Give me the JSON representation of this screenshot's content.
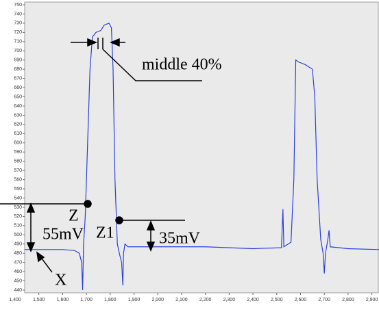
{
  "chart_data": {
    "type": "line",
    "x": [
      1440,
      1600,
      1650,
      1670,
      1680,
      1684,
      1688,
      1695,
      1705,
      1715,
      1725,
      1740,
      1760,
      1775,
      1795,
      1805,
      1812,
      1820,
      1830,
      1840,
      1848,
      1853,
      1856,
      1862,
      1875,
      2000,
      2200,
      2400,
      2520,
      2526,
      2530,
      2560,
      2572,
      2580,
      2590,
      2620,
      2650,
      2660,
      2670,
      2685,
      2695,
      2700,
      2705,
      2715,
      2720,
      2725,
      2800,
      2930
    ],
    "series": [
      {
        "color": "#2a3fe0",
        "values": [
          484,
          484,
          483,
          480,
          470,
          440,
          490,
          520,
          600,
          680,
          715,
          720,
          722,
          728,
          730,
          725,
          680,
          560,
          490,
          478,
          470,
          445,
          480,
          490,
          487,
          487,
          487,
          485,
          486,
          528,
          487,
          492,
          560,
          690,
          688,
          685,
          680,
          650,
          560,
          495,
          480,
          458,
          480,
          495,
          505,
          487,
          485,
          484
        ]
      }
    ],
    "xlim": [
      1400,
      2930
    ],
    "ylim": [
      440,
      750
    ],
    "xticks": [
      {
        "value": 1400,
        "label": "1,400"
      },
      {
        "value": 1500,
        "label": "1,500"
      },
      {
        "value": 1600,
        "label": "1,600"
      },
      {
        "value": 1700,
        "label": "1,700"
      },
      {
        "value": 1800,
        "label": "1,800"
      },
      {
        "value": 1900,
        "label": "1,900"
      },
      {
        "value": 2000,
        "label": "2,000"
      },
      {
        "value": 2100,
        "label": "2,100"
      },
      {
        "value": 2200,
        "label": "2,200"
      },
      {
        "value": 2300,
        "label": "2,300"
      },
      {
        "value": 2400,
        "label": "2,400"
      },
      {
        "value": 2500,
        "label": "2,500"
      },
      {
        "value": 2600,
        "label": "2,600"
      },
      {
        "value": 2700,
        "label": "2,700"
      },
      {
        "value": 2800,
        "label": "2,800"
      },
      {
        "value": 2900,
        "label": "2,900"
      }
    ],
    "yticks": [
      440,
      450,
      460,
      470,
      480,
      490,
      500,
      510,
      520,
      530,
      540,
      550,
      560,
      570,
      580,
      590,
      600,
      610,
      620,
      630,
      640,
      650,
      660,
      670,
      680,
      690,
      700,
      710,
      720,
      730,
      740,
      750
    ],
    "annotations": [
      "middle 40%",
      "Z",
      "Z1",
      "55mV",
      "35mV",
      "X"
    ]
  }
}
